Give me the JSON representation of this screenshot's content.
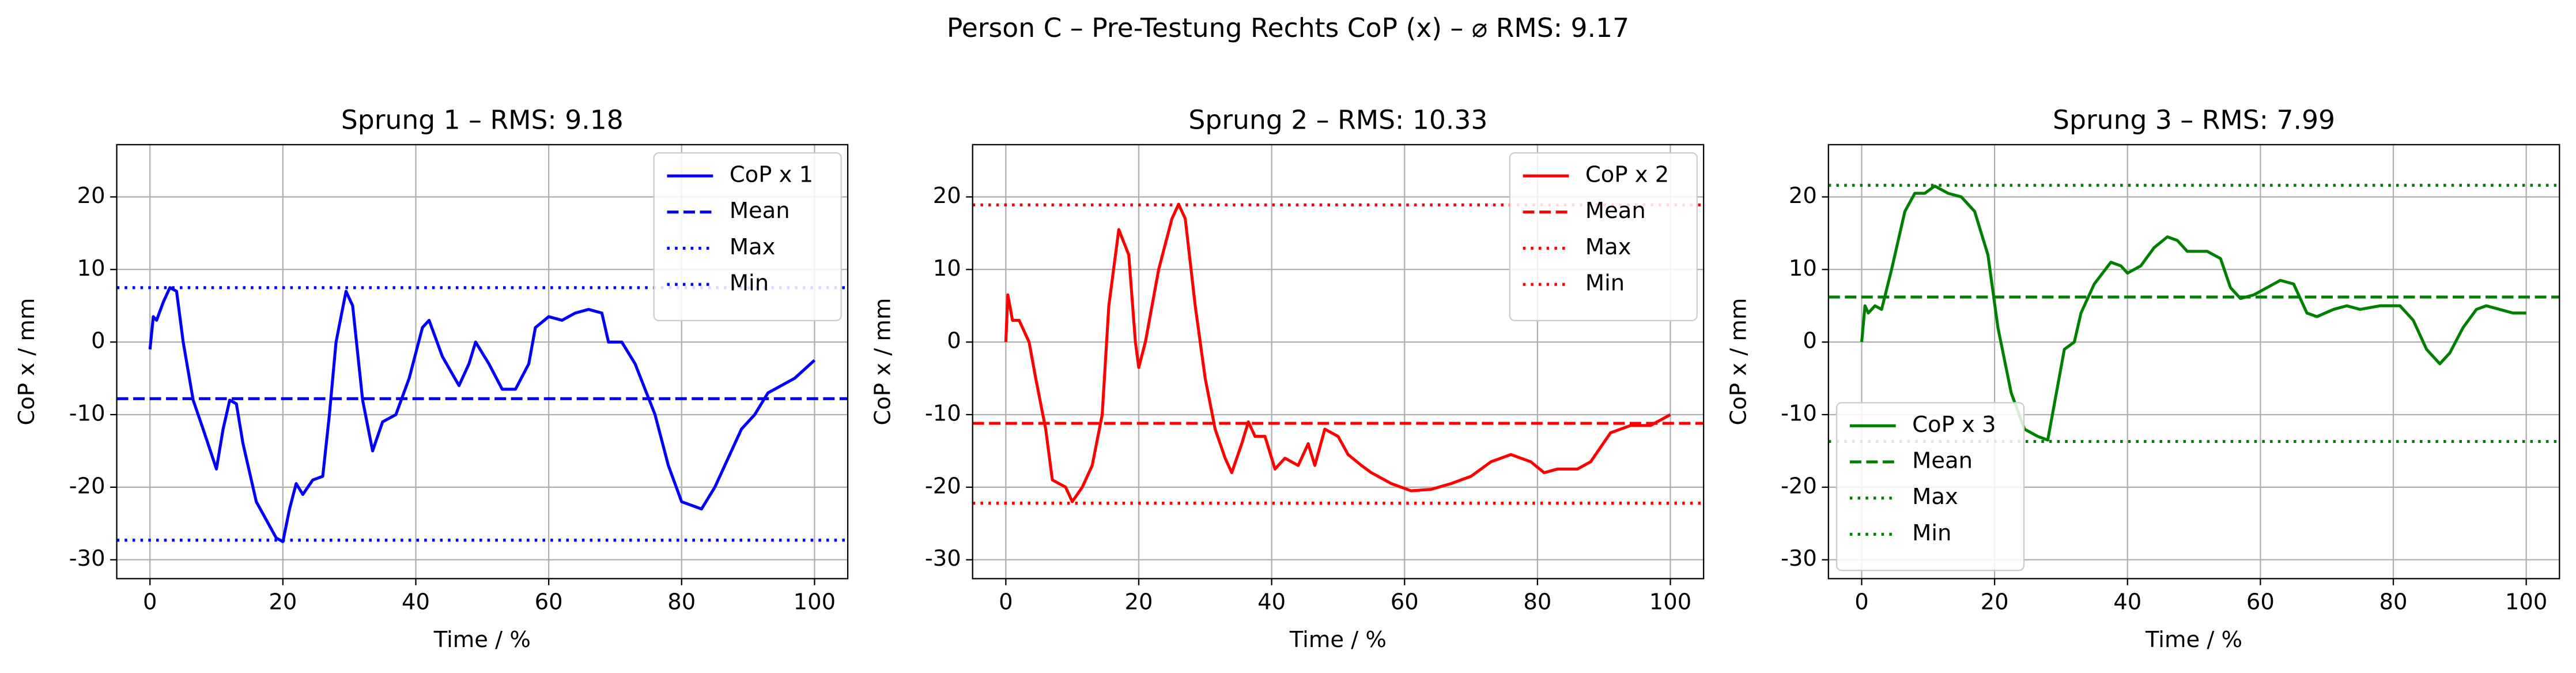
{
  "title": "Person C – Pre-Testung Rechts CoP (x) – ⌀ RMS: 9.17",
  "chart_data": [
    {
      "type": "line",
      "title": "Sprung 1 – RMS: 9.18",
      "xlabel": "Time / %",
      "ylabel": "CoP x / mm",
      "xlim": [
        -5,
        105
      ],
      "ylim": [
        -32.6,
        27.2
      ],
      "xticks": [
        0,
        20,
        40,
        60,
        80,
        100
      ],
      "yticks": [
        -30,
        -20,
        -10,
        0,
        10,
        20
      ],
      "grid": true,
      "legend": "upper right",
      "color": "#0000ff",
      "series": [
        {
          "name": "CoP x 1",
          "style": "solid",
          "x": [
            0,
            0.5,
            1,
            2,
            3,
            4,
            5,
            6.5,
            8,
            10,
            11,
            12,
            13,
            14,
            16,
            19,
            20,
            21,
            22,
            23,
            24.5,
            26,
            27,
            28,
            29.5,
            30.5,
            32,
            33.5,
            35,
            37,
            39,
            41,
            42,
            44,
            46.5,
            48,
            49,
            51,
            53,
            55,
            57,
            58,
            60,
            62,
            64,
            66,
            68,
            69,
            71,
            73,
            76,
            78,
            80,
            83,
            85,
            87,
            89,
            91,
            93,
            95,
            97,
            100
          ],
          "values": [
            -1,
            3.5,
            3,
            5.5,
            7.5,
            7,
            0,
            -8,
            -12,
            -17.5,
            -12,
            -8,
            -8.5,
            -14,
            -22,
            -27,
            -27.5,
            -23,
            -19.5,
            -21,
            -19,
            -18.5,
            -10,
            0,
            7,
            5,
            -8,
            -15,
            -11,
            -10,
            -5,
            2,
            3,
            -2,
            -6,
            -3,
            0,
            -3,
            -6.5,
            -6.5,
            -3,
            2,
            3.5,
            3,
            4,
            4.5,
            4,
            0,
            0,
            -3,
            -10,
            -17,
            -22,
            -23,
            -20,
            -16,
            -12,
            -10,
            -7,
            -6,
            -5,
            -2.5
          ]
        },
        {
          "name": "Mean",
          "style": "dashed",
          "value": -7.8
        },
        {
          "name": "Max",
          "style": "dotted",
          "value": 7.5
        },
        {
          "name": "Min",
          "style": "dotted",
          "value": -27.3
        }
      ]
    },
    {
      "type": "line",
      "title": "Sprung 2 – RMS: 10.33",
      "xlabel": "Time / %",
      "ylabel": "CoP x / mm",
      "xlim": [
        -5,
        105
      ],
      "ylim": [
        -32.6,
        27.2
      ],
      "xticks": [
        0,
        20,
        40,
        60,
        80,
        100
      ],
      "yticks": [
        -30,
        -20,
        -10,
        0,
        10,
        20
      ],
      "grid": true,
      "legend": "upper right",
      "color": "#ff0000",
      "series": [
        {
          "name": "CoP x 2",
          "style": "solid",
          "x": [
            0,
            0.3,
            1,
            2,
            3.5,
            4.5,
            6,
            7,
            9,
            10,
            11.5,
            13,
            14.5,
            15.5,
            17,
            18.5,
            19.5,
            20,
            21,
            23,
            25,
            26,
            27,
            28.5,
            30,
            31.5,
            33,
            34,
            35.5,
            36.5,
            37.5,
            39,
            40.5,
            42,
            44,
            45.5,
            46.5,
            48,
            50,
            51.5,
            53.5,
            55,
            58,
            61,
            64,
            67,
            70,
            73,
            76,
            79,
            81,
            83,
            86,
            88,
            91,
            94,
            97,
            100
          ],
          "values": [
            0,
            6.5,
            3,
            3,
            0,
            -5,
            -12,
            -19,
            -20,
            -22,
            -20,
            -17,
            -10,
            5,
            15.5,
            12,
            0,
            -3.5,
            0,
            10,
            17,
            19,
            17,
            5,
            -5,
            -12,
            -16,
            -18,
            -14,
            -11,
            -13,
            -13,
            -17.5,
            -16,
            -17,
            -14,
            -17,
            -12,
            -13,
            -15.5,
            -17,
            -18,
            -19.5,
            -20.5,
            -20.3,
            -19.5,
            -18.5,
            -16.5,
            -15.5,
            -16.5,
            -18,
            -17.5,
            -17.5,
            -16.5,
            -12.5,
            -11.5,
            -11.5,
            -10
          ]
        },
        {
          "name": "Mean",
          "style": "dashed",
          "value": -11.2
        },
        {
          "name": "Max",
          "style": "dotted",
          "value": 18.9
        },
        {
          "name": "Min",
          "style": "dotted",
          "value": -22.2
        }
      ]
    },
    {
      "type": "line",
      "title": "Sprung 3 – RMS: 7.99",
      "xlabel": "Time / %",
      "ylabel": "CoP x / mm",
      "xlim": [
        -5,
        105
      ],
      "ylim": [
        -32.6,
        27.2
      ],
      "xticks": [
        0,
        20,
        40,
        60,
        80,
        100
      ],
      "yticks": [
        -30,
        -20,
        -10,
        0,
        10,
        20
      ],
      "grid": true,
      "legend": "lower left",
      "color": "#008000",
      "series": [
        {
          "name": "CoP x 3",
          "style": "solid",
          "x": [
            0,
            0.5,
            1,
            2,
            3,
            4.5,
            6.5,
            8,
            9.5,
            11,
            13,
            15,
            17,
            19,
            20.5,
            22.5,
            24.5,
            26.5,
            28,
            29.5,
            30.5,
            32,
            33,
            35,
            37.5,
            39,
            40,
            42,
            44,
            46,
            47.5,
            49,
            52,
            54,
            55.5,
            57,
            59,
            61,
            63,
            65,
            67,
            68.5,
            71,
            73,
            75,
            78,
            81,
            83,
            85,
            87,
            88.5,
            90.5,
            92.5,
            94,
            96,
            98,
            100
          ],
          "values": [
            0,
            5,
            4,
            5,
            4.5,
            10,
            18,
            20.5,
            20.5,
            21.5,
            20.5,
            20,
            18,
            12,
            2,
            -7,
            -12,
            -13,
            -13.5,
            -6,
            -1,
            0,
            4,
            8,
            11,
            10.5,
            9.5,
            10.5,
            13,
            14.5,
            14,
            12.5,
            12.5,
            11.5,
            7.5,
            6,
            6.5,
            7.5,
            8.5,
            8,
            4,
            3.5,
            4.5,
            5,
            4.5,
            5,
            5,
            3,
            -1,
            -3,
            -1.5,
            2,
            4.5,
            5,
            4.5,
            4,
            4
          ]
        },
        {
          "name": "Mean",
          "style": "dashed",
          "value": 6.2
        },
        {
          "name": "Max",
          "style": "dotted",
          "value": 21.6
        },
        {
          "name": "Min",
          "style": "dotted",
          "value": -13.7
        }
      ]
    }
  ]
}
